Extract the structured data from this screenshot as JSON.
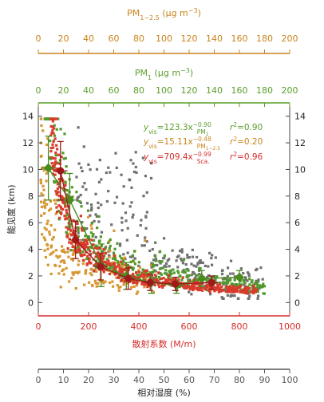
{
  "chart_data": {
    "type": "scatter",
    "axes": {
      "pm125": {
        "label_base": "PM",
        "label_sub": "1−2.5",
        "label_unit_pre": " (μg m",
        "label_unit_sup": "−3",
        "label_unit_post": ")",
        "range": [
          0,
          200
        ],
        "ticks": [
          "0",
          "20",
          "40",
          "60",
          "80",
          "100",
          "120",
          "140",
          "160",
          "180",
          "200"
        ],
        "color": "#c9841c"
      },
      "pm1": {
        "label_base": "PM",
        "label_sub": "1",
        "label_unit_pre": " (μg m",
        "label_unit_sup": "−3",
        "label_unit_post": ")",
        "range": [
          0,
          200
        ],
        "ticks": [
          "0",
          "20",
          "40",
          "60",
          "80",
          "100",
          "120",
          "140",
          "160",
          "180",
          "200"
        ],
        "color": "#5a9e2a"
      },
      "ylabel": "能见度 (km)",
      "ylim": [
        -1,
        15
      ],
      "yticks": [
        "0",
        "2",
        "4",
        "6",
        "8",
        "10",
        "12",
        "14"
      ],
      "sca": {
        "label": "散射系数 (M/m)",
        "range": [
          0,
          1000
        ],
        "ticks": [
          "0",
          "200",
          "400",
          "600",
          "800",
          "1000"
        ],
        "color": "#d42d2a"
      },
      "rh": {
        "label": "相对湿度 (%)",
        "range": [
          0,
          100
        ],
        "ticks": [
          "0",
          "10",
          "20",
          "30",
          "40",
          "50",
          "60",
          "70",
          "80",
          "90",
          "100"
        ],
        "color": "#555555"
      }
    },
    "fits": [
      {
        "name": "PM1",
        "lhs": "y",
        "lhs_sub": "vis",
        "eq": "=123.3x",
        "x_sub": "PM",
        "x_subsub": "1",
        "exp": "−0.90",
        "r2_label": "r",
        "r2_sup": "2",
        "r2": "=0.90",
        "color": "#5a9e2a"
      },
      {
        "name": "PM1-2.5",
        "lhs": "y",
        "lhs_sub": "vis",
        "eq": "=15.11x",
        "x_sub": "PM",
        "x_subsub": "1−2.5",
        "exp": "−0.48",
        "r2_label": "r",
        "r2_sup": "2",
        "r2": "=0.20",
        "color": "#c9841c"
      },
      {
        "name": "Sca",
        "lhs": "y",
        "lhs_sub": "vis",
        "eq": "=709.4x",
        "x_sub": "Sca.",
        "x_subsub": "",
        "exp": "−0.99",
        "r2_label": "r",
        "r2_sup": "2",
        "r2": "=0.96",
        "color": "#d42d2a"
      }
    ],
    "binned_means": {
      "pm1": {
        "color": "#4a8a1e",
        "points": [
          [
            8,
            10.1
          ],
          [
            25,
            7.7
          ],
          [
            50,
            2.8
          ],
          [
            70,
            2.0
          ],
          [
            90,
            1.5
          ],
          [
            110,
            1.3
          ],
          [
            130,
            1.8
          ],
          [
            160,
            1.9
          ]
        ]
      },
      "sca": {
        "color": "#9e1a1a",
        "points": [
          [
            88,
            9.9
          ],
          [
            148,
            4.7
          ],
          [
            248,
            2.7
          ],
          [
            358,
            1.8
          ],
          [
            445,
            1.5
          ],
          [
            545,
            1.4
          ],
          [
            690,
            1.5
          ]
        ]
      }
    },
    "scatter_series": [
      {
        "name": "Sca",
        "color": "#d93a2b",
        "count": 520
      },
      {
        "name": "PM1",
        "color": "#4f9a2a",
        "count": 380
      },
      {
        "name": "PM1-2.5",
        "color": "#d69630",
        "count": 230
      },
      {
        "name": "RH",
        "color": "#707070",
        "count": 300
      }
    ]
  }
}
